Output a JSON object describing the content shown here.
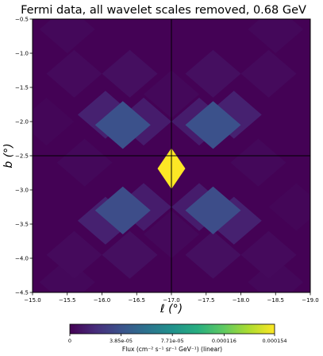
{
  "chart_data": {
    "type": "heatmap",
    "title": "Fermi data, all wavelet scales removed, 0.68 GeV",
    "xlabel": "ℓ (°)",
    "ylabel": "b (°)",
    "xlim": [
      -15.0,
      -19.0
    ],
    "ylim": [
      -4.5,
      -0.5
    ],
    "x_ticks": [
      "-15.0",
      "-15.5",
      "-16.0",
      "-16.5",
      "-17.0",
      "-17.5",
      "-18.0",
      "-18.5",
      "-19.0"
    ],
    "x_tick_values": [
      -15.0,
      -15.5,
      -16.0,
      -16.5,
      -17.0,
      -17.5,
      -18.0,
      -18.5,
      -19.0
    ],
    "y_ticks": [
      "-0.5",
      "-1.0",
      "-1.5",
      "-2.0",
      "-2.5",
      "-3.0",
      "-3.5",
      "-4.0",
      "-4.5"
    ],
    "y_tick_values": [
      -0.5,
      -1.0,
      -1.5,
      -2.0,
      -2.5,
      -3.0,
      -3.5,
      -4.0,
      -4.5
    ],
    "crosshair": {
      "l": -17.0,
      "b": -2.5
    },
    "colorbar": {
      "label": "Flux (cm⁻² s⁻¹ sr⁻¹ GeV⁻¹) (linear)",
      "min": 0,
      "max": 0.000154,
      "ticks": [
        "0",
        "3.85e-05",
        "7.71e-05",
        "0.000116",
        "0.000154"
      ],
      "tick_values": [
        0,
        3.85e-05,
        7.71e-05,
        0.000116,
        0.000154
      ],
      "colormap": "viridis"
    },
    "grid": false,
    "pixel_grid": {
      "cell_deg": 0.25,
      "rotation_deg": 45
    },
    "pixels": [
      {
        "l": -17.0,
        "b": -2.6875,
        "flux": 0.000154
      },
      {
        "l": -16.6,
        "b": -2.0,
        "flux": 1.2e-05
      },
      {
        "l": -17.4,
        "b": -2.0,
        "flux": 1.2e-05
      },
      {
        "l": -16.6,
        "b": -3.25,
        "flux": 1.2e-05
      },
      {
        "l": -17.4,
        "b": -3.25,
        "flux": 1.2e-05
      },
      {
        "l": -16.3,
        "b": -2.05,
        "flux": 3.8e-05
      },
      {
        "l": -17.6,
        "b": -2.05,
        "flux": 3.8e-05
      },
      {
        "l": -16.3,
        "b": -3.3,
        "flux": 3.6e-05
      },
      {
        "l": -17.6,
        "b": -3.3,
        "flux": 3.6e-05
      },
      {
        "l": -16.05,
        "b": -1.9,
        "flux": 1.4e-05
      },
      {
        "l": -17.9,
        "b": -1.9,
        "flux": 1.4e-05
      },
      {
        "l": -16.05,
        "b": -3.45,
        "flux": 1.4e-05
      },
      {
        "l": -17.9,
        "b": -3.45,
        "flux": 1.4e-05
      },
      {
        "l": -16.4,
        "b": -1.3,
        "flux": 6e-06
      },
      {
        "l": -17.6,
        "b": -1.3,
        "flux": 6e-06
      },
      {
        "l": -16.4,
        "b": -3.95,
        "flux": 6e-06
      },
      {
        "l": -17.6,
        "b": -3.95,
        "flux": 6e-06
      },
      {
        "l": -15.6,
        "b": -1.3,
        "flux": 4e-06
      },
      {
        "l": -18.4,
        "b": -1.3,
        "flux": 4e-06
      },
      {
        "l": -15.6,
        "b": -3.95,
        "flux": 4e-06
      },
      {
        "l": -18.4,
        "b": -3.95,
        "flux": 4e-06
      },
      {
        "l": -15.75,
        "b": -2.6,
        "flux": 3e-06
      },
      {
        "l": -18.25,
        "b": -2.6,
        "flux": 3e-06
      },
      {
        "l": -15.5,
        "b": -0.65,
        "flux": 3e-06
      },
      {
        "l": -18.5,
        "b": -0.65,
        "flux": 3e-06
      },
      {
        "l": -15.5,
        "b": -4.35,
        "flux": 3e-06
      },
      {
        "l": -18.5,
        "b": -4.35,
        "flux": 3e-06
      },
      {
        "l": -17.0,
        "b": -1.6,
        "flux": 3e-06
      },
      {
        "l": -17.0,
        "b": -3.65,
        "flux": 3e-06
      },
      {
        "l": -15.2,
        "b": -2.0,
        "flux": 2e-06
      },
      {
        "l": -18.8,
        "b": -3.25,
        "flux": 2e-06
      }
    ],
    "background_flux": 5e-07
  }
}
